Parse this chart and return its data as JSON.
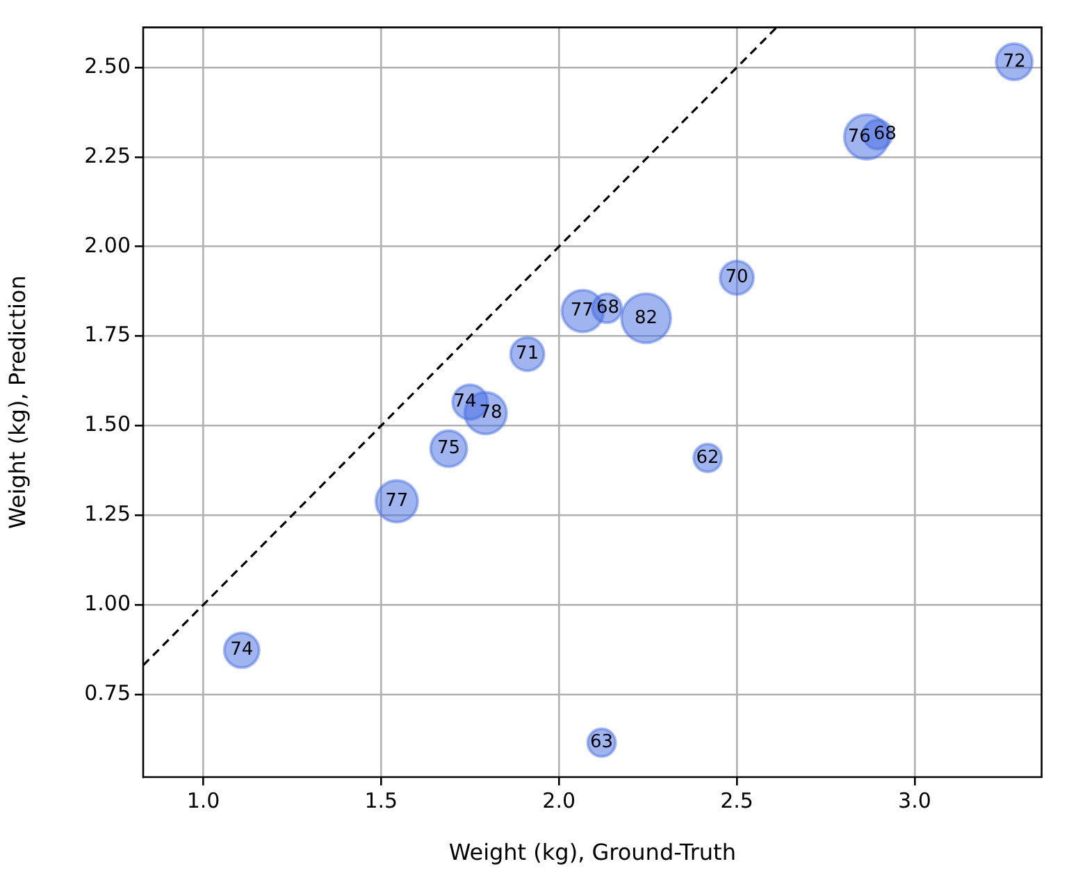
{
  "chart_data": {
    "type": "bubble",
    "xlabel": "Weight (kg), Ground-Truth",
    "ylabel": "Weight (kg), Prediction",
    "xlim": [
      0.831,
      3.357
    ],
    "ylim": [
      0.519,
      2.612
    ],
    "xticks": [
      {
        "value": 1.0,
        "label": "1.0"
      },
      {
        "value": 1.5,
        "label": "1.5"
      },
      {
        "value": 2.0,
        "label": "2.0"
      },
      {
        "value": 2.5,
        "label": "2.5"
      },
      {
        "value": 3.0,
        "label": "3.0"
      }
    ],
    "yticks": [
      {
        "value": 0.75,
        "label": "0.75"
      },
      {
        "value": 1.0,
        "label": "1.00"
      },
      {
        "value": 1.25,
        "label": "1.25"
      },
      {
        "value": 1.5,
        "label": "1.50"
      },
      {
        "value": 1.75,
        "label": "1.75"
      },
      {
        "value": 2.0,
        "label": "2.00"
      },
      {
        "value": 2.25,
        "label": "2.25"
      },
      {
        "value": 2.5,
        "label": "2.50"
      }
    ],
    "grid": true,
    "legend": false,
    "series": [
      {
        "color": "#4169e1",
        "x": [
          1.108,
          1.544,
          1.69,
          1.75,
          1.794,
          1.911,
          2.067,
          2.135,
          2.245,
          2.5,
          2.418,
          2.12,
          2.865,
          2.896,
          3.28
        ],
        "values": [
          0.873,
          1.289,
          1.436,
          1.566,
          1.535,
          1.7,
          1.82,
          1.828,
          1.8,
          1.913,
          1.41,
          0.615,
          2.306,
          2.313,
          2.516
        ],
        "sizes": [
          0.5,
          0.72,
          0.54,
          0.5,
          0.72,
          0.46,
          0.72,
          0.35,
          1,
          0.46,
          0.32,
          0.32,
          0.82,
          0.35,
          0.54
        ]
      },
      {
        "type": "line",
        "color": "#000000",
        "line_style": "dashed",
        "marker": "none",
        "x": [
          0.831,
          2.612
        ],
        "values": [
          0.831,
          2.612
        ]
      }
    ],
    "annotations": [
      {
        "text": "74",
        "x": 1.108,
        "y": 0.873
      },
      {
        "text": "77",
        "x": 1.544,
        "y": 1.289
      },
      {
        "text": "75",
        "x": 1.69,
        "y": 1.436
      },
      {
        "text": "74",
        "x": 1.75,
        "y": 1.566
      },
      {
        "text": "78",
        "x": 1.794,
        "y": 1.535
      },
      {
        "text": "71",
        "x": 1.911,
        "y": 1.7
      },
      {
        "text": "77",
        "x": 2.067,
        "y": 1.82
      },
      {
        "text": "68",
        "x": 2.135,
        "y": 1.828
      },
      {
        "text": "82",
        "x": 2.245,
        "y": 1.8
      },
      {
        "text": "70",
        "x": 2.5,
        "y": 1.913
      },
      {
        "text": "62",
        "x": 2.418,
        "y": 1.41
      },
      {
        "text": "63",
        "x": 2.12,
        "y": 0.615
      },
      {
        "text": "76",
        "x": 2.865,
        "y": 2.306
      },
      {
        "text": "68",
        "x": 2.896,
        "y": 2.313
      },
      {
        "text": "72",
        "x": 3.28,
        "y": 2.516
      }
    ]
  }
}
